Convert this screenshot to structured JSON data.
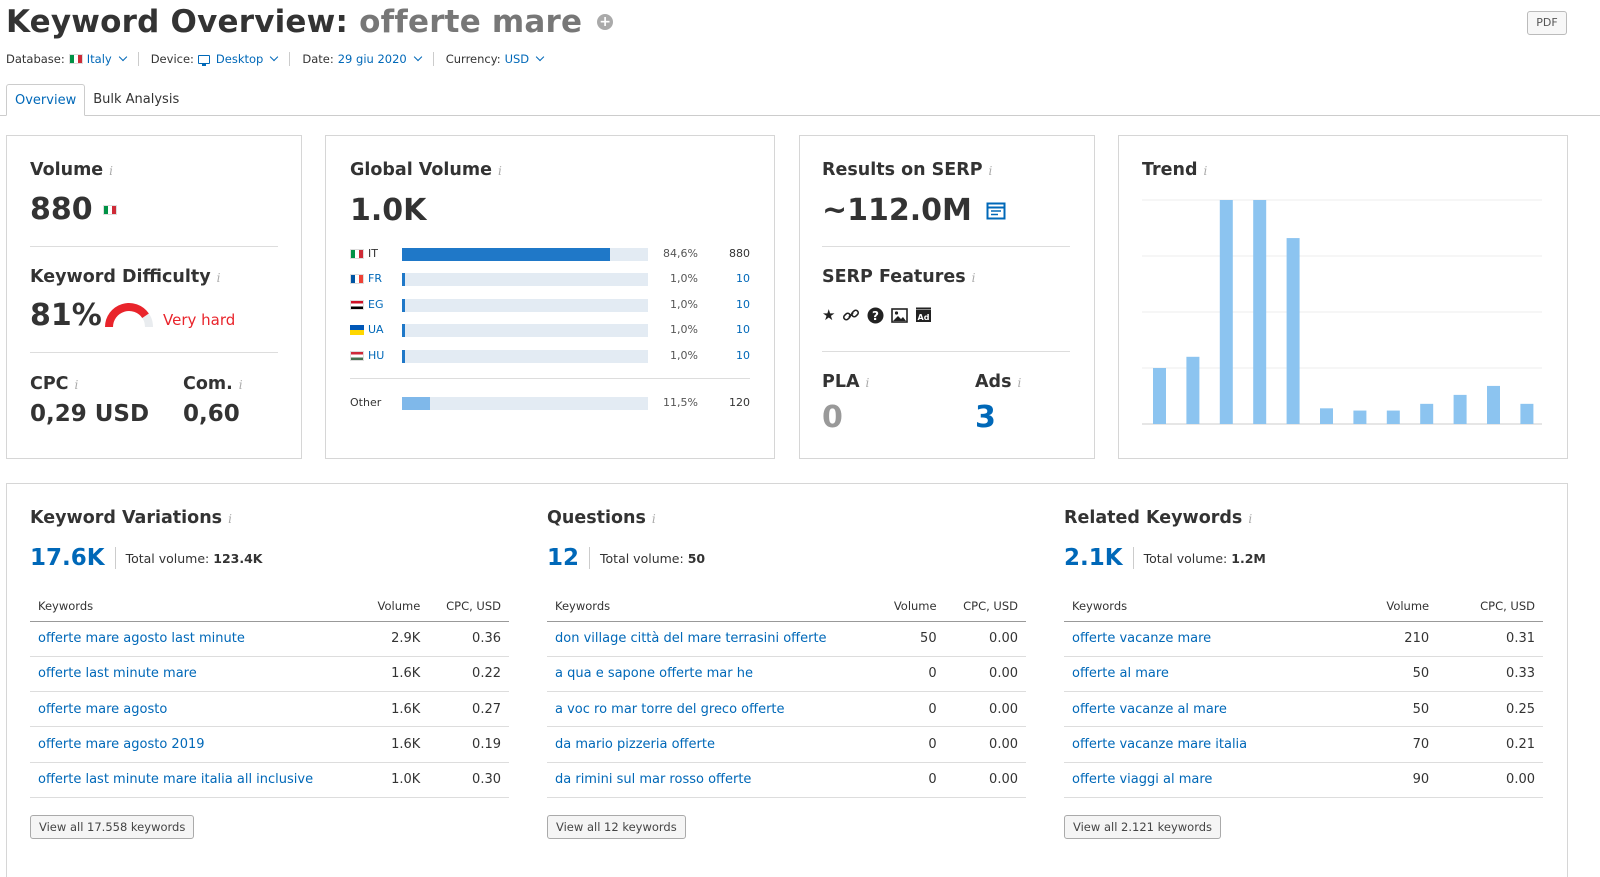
{
  "header": {
    "title_prefix": "Keyword Overview:",
    "keyword": "offerte mare",
    "pdf_label": "PDF"
  },
  "filters": {
    "database_label": "Database:",
    "database_value": "Italy",
    "device_label": "Device:",
    "device_value": "Desktop",
    "date_label": "Date:",
    "date_value": "29 giu 2020",
    "currency_label": "Currency:",
    "currency_value": "USD"
  },
  "tabs": [
    {
      "label": "Overview",
      "active": true
    },
    {
      "label": "Bulk Analysis",
      "active": false
    }
  ],
  "volume": {
    "title": "Volume",
    "value": "880",
    "kd_title": "Keyword Difficulty",
    "kd_value": "81%",
    "kd_level": 0.81,
    "kd_label": "Very hard",
    "kd_color": "#e9242b",
    "cpc_title": "CPC",
    "cpc_value": "0,29 USD",
    "com_title": "Com.",
    "com_value": "0,60"
  },
  "global_volume": {
    "title": "Global Volume",
    "value": "1.0K",
    "rows": [
      {
        "code": "IT",
        "pct": "84,6%",
        "fraction": 0.846,
        "value": "880"
      },
      {
        "code": "FR",
        "pct": "1,0%",
        "fraction": 0.01,
        "value": "10"
      },
      {
        "code": "EG",
        "pct": "1,0%",
        "fraction": 0.01,
        "value": "10"
      },
      {
        "code": "UA",
        "pct": "1,0%",
        "fraction": 0.01,
        "value": "10"
      },
      {
        "code": "HU",
        "pct": "1,0%",
        "fraction": 0.01,
        "value": "10"
      }
    ],
    "other": {
      "label": "Other",
      "pct": "11,5%",
      "fraction": 0.115,
      "value": "120"
    }
  },
  "serp": {
    "results_title": "Results on SERP",
    "results_value": "~112.0M",
    "features_title": "SERP Features",
    "features_icons": [
      "star-icon",
      "link-icon",
      "question-icon",
      "image-icon",
      "ad-icon"
    ],
    "pla_title": "PLA",
    "pla_value": "0",
    "ads_title": "Ads",
    "ads_value": "3"
  },
  "trend": {
    "title": "Trend",
    "chart_data": {
      "type": "bar",
      "values": [
        0.25,
        0.3,
        1.0,
        1.0,
        0.83,
        0.07,
        0.06,
        0.06,
        0.09,
        0.13,
        0.17,
        0.09
      ],
      "color": "#8cc4f0"
    }
  },
  "variations": {
    "title": "Keyword Variations",
    "count": "17.6K",
    "total_label": "Total volume:",
    "total_value": "123.4K",
    "columns": [
      "Keywords",
      "Volume",
      "CPC, USD"
    ],
    "rows": [
      [
        "offerte mare agosto last minute",
        "2.9K",
        "0.36"
      ],
      [
        "offerte last minute mare",
        "1.6K",
        "0.22"
      ],
      [
        "offerte mare agosto",
        "1.6K",
        "0.27"
      ],
      [
        "offerte mare agosto 2019",
        "1.6K",
        "0.19"
      ],
      [
        "offerte last minute mare italia all inclusive",
        "1.0K",
        "0.30"
      ]
    ],
    "view_all": "View all 17.558 keywords"
  },
  "questions": {
    "title": "Questions",
    "count": "12",
    "total_label": "Total volume:",
    "total_value": "50",
    "columns": [
      "Keywords",
      "Volume",
      "CPC, USD"
    ],
    "rows": [
      [
        "don village città del mare terrasini offerte",
        "50",
        "0.00"
      ],
      [
        "a qua e sapone offerte mar he",
        "0",
        "0.00"
      ],
      [
        "a voc ro mar torre del greco offerte",
        "0",
        "0.00"
      ],
      [
        "da mario pizzeria offerte",
        "0",
        "0.00"
      ],
      [
        "da rimini sul mar rosso offerte",
        "0",
        "0.00"
      ]
    ],
    "view_all": "View all 12 keywords"
  },
  "related": {
    "title": "Related Keywords",
    "count": "2.1K",
    "total_label": "Total volume:",
    "total_value": "1.2M",
    "columns": [
      "Keywords",
      "Volume",
      "CPC, USD"
    ],
    "rows": [
      [
        "offerte vacanze mare",
        "210",
        "0.31"
      ],
      [
        "offerte al mare",
        "50",
        "0.33"
      ],
      [
        "offerte vacanze al mare",
        "50",
        "0.25"
      ],
      [
        "offerte vacanze mare italia",
        "70",
        "0.21"
      ],
      [
        "offerte viaggi al mare",
        "90",
        "0.00"
      ]
    ],
    "view_all": "View all 2.121 keywords"
  }
}
